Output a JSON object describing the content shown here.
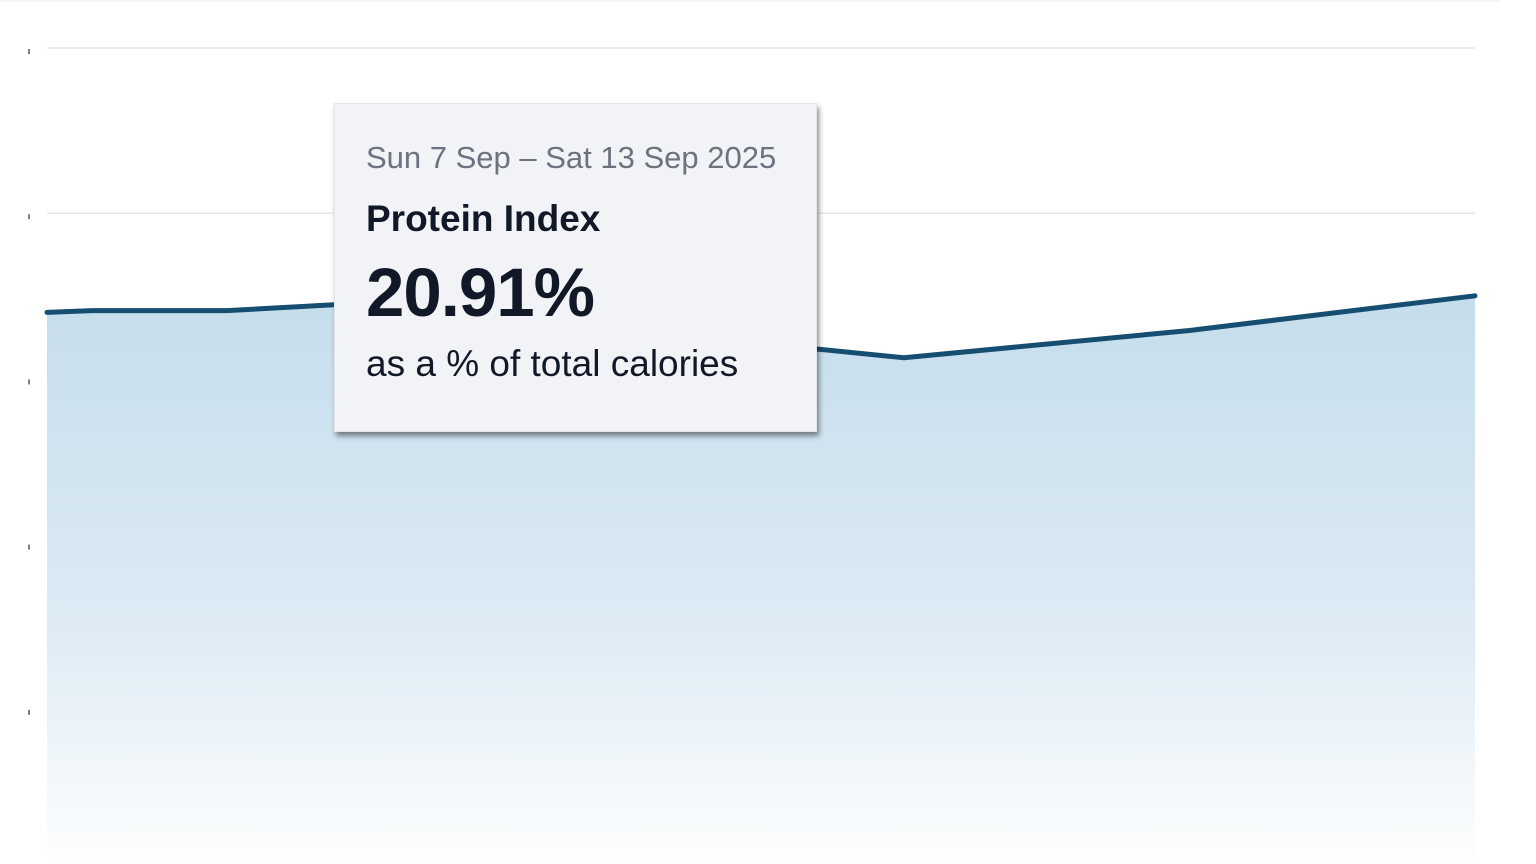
{
  "chart_data": {
    "type": "area",
    "series": [
      {
        "values": [
          20.8,
          20.82,
          20.82,
          20.91,
          20.25,
          20.58,
          21.0
        ]
      }
    ],
    "ylim": [
      14,
      24
    ],
    "y_gridlines": [
      16,
      18,
      20,
      22,
      24
    ],
    "grid": true,
    "legend": "none",
    "colors": {
      "line": "#164e72",
      "fill_top": "#c5ddec",
      "fill_bottom": "#ffffff",
      "grid": "#e5e7eb",
      "tick": "#4b5563"
    }
  },
  "tooltip": {
    "date_range": "Sun 7 Sep – Sat 13 Sep 2025",
    "metric": "Protein Index",
    "value": "20.91%",
    "caption": "as a % of total calories",
    "active_point_index": 3
  }
}
